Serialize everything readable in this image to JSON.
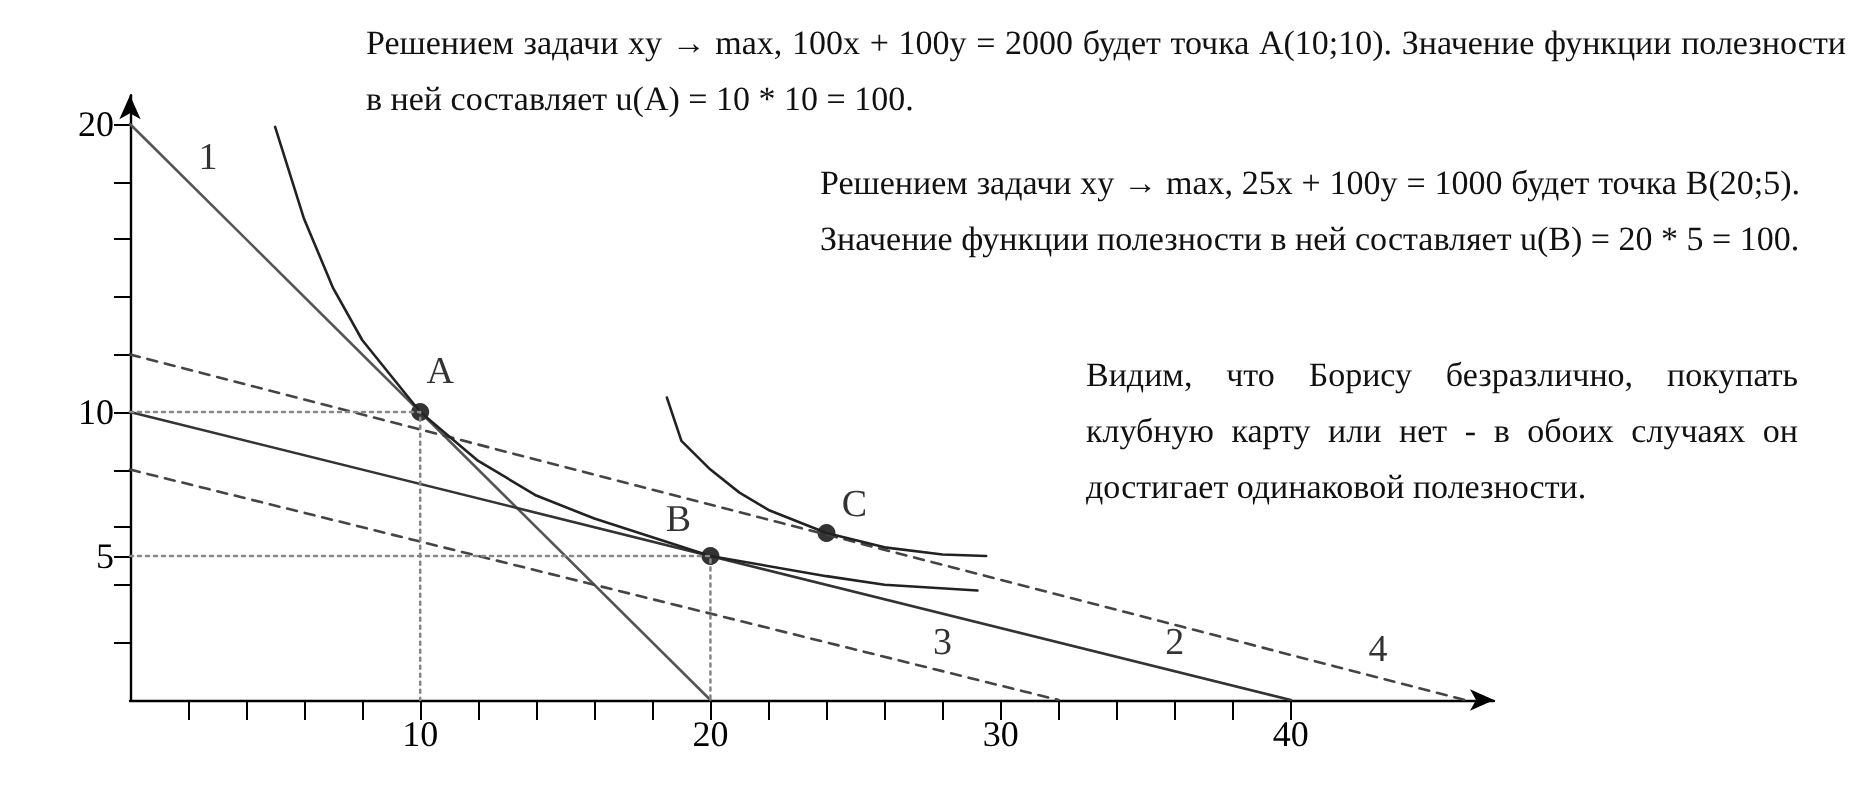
{
  "chart_data": {
    "type": "line",
    "xlim": [
      0,
      47
    ],
    "ylim": [
      0,
      21
    ],
    "xticks": [
      {
        "value": 2,
        "label": null
      },
      {
        "value": 4,
        "label": null
      },
      {
        "value": 6,
        "label": null
      },
      {
        "value": 8,
        "label": null
      },
      10,
      {
        "value": 12,
        "label": null
      },
      {
        "value": 14,
        "label": null
      },
      {
        "value": 16,
        "label": null
      },
      {
        "value": 18,
        "label": null
      },
      20,
      {
        "value": 22,
        "label": null
      },
      {
        "value": 24,
        "label": null
      },
      {
        "value": 26,
        "label": null
      },
      {
        "value": 28,
        "label": null
      },
      30,
      {
        "value": 32,
        "label": null
      },
      {
        "value": 34,
        "label": null
      },
      {
        "value": 36,
        "label": null
      },
      {
        "value": 38,
        "label": null
      },
      40
    ],
    "yticks": [
      {
        "value": 2,
        "label": null
      },
      {
        "value": 4,
        "label": null
      },
      5,
      {
        "value": 6,
        "label": null
      },
      {
        "value": 8,
        "label": null
      },
      10,
      {
        "value": 12,
        "label": null
      },
      {
        "value": 14,
        "label": null
      },
      {
        "value": 16,
        "label": null
      },
      {
        "value": 18,
        "label": null
      },
      20
    ],
    "grid": false,
    "marker": "none",
    "series": [
      {
        "color": "#555555",
        "line_style": "solid",
        "x": [
          0,
          20
        ],
        "values": [
          20,
          0
        ]
      },
      {
        "color": "#333333",
        "line_style": "solid",
        "x": [
          0,
          40
        ],
        "values": [
          10,
          0
        ]
      },
      {
        "color": "#444444",
        "line_style": "dashed",
        "x": [
          0,
          32
        ],
        "values": [
          8,
          0
        ]
      },
      {
        "color": "#444444",
        "line_style": "dashed",
        "x": [
          0,
          46
        ],
        "values": [
          12,
          0
        ]
      },
      {
        "type": "line",
        "color": "#222222",
        "line_style": "solid",
        "x": [
          5,
          6,
          7,
          8,
          10,
          12,
          14,
          16,
          20,
          24,
          26,
          29.2
        ],
        "values": [
          19.9,
          16.7,
          14.3,
          12.5,
          10,
          8.3,
          7.1,
          6.3,
          5,
          4.3,
          4.0,
          3.8
        ]
      },
      {
        "type": "line",
        "color": "#222222",
        "line_style": "solid",
        "x": [
          18.5,
          19,
          20,
          21,
          22,
          24,
          26,
          28,
          29.5
        ],
        "values": [
          10.5,
          9,
          8,
          7.2,
          6.6,
          5.8,
          5.3,
          5.05,
          5.0
        ]
      },
      {
        "type": "line",
        "color": "#888888",
        "line_style": "dotted",
        "x": [
          0,
          10,
          10
        ],
        "values": [
          10,
          10,
          0
        ]
      },
      {
        "type": "line",
        "color": "#888888",
        "line_style": "dotted",
        "x": [
          0,
          20,
          20
        ],
        "values": [
          5,
          5,
          0
        ]
      },
      {
        "type": "scatter",
        "color": "#000000",
        "marker": "circle",
        "x": [
          10,
          20,
          24
        ],
        "values": [
          10,
          5,
          5.8
        ]
      }
    ],
    "annotations": [
      "Решением задачи xy → max, 100x + 100y = 2000 будет точка A(10;10). Значение функции полезности в ней составляет u(A) = 10 * 10 = 100.",
      "Решением задачи xy → max, 25x + 100y = 1000 будет точка B(20;5). Значение функции полезности в ней составляет u(B) = 20 * 5 = 100.",
      "Видим, что Борису безразлично, покупать клубную карту или нет - в обоих случаях он достигает одинаковой полезности.",
      {
        "text": "1",
        "x": 2,
        "y": 18
      },
      {
        "text": "2",
        "x": 36,
        "y": 1
      },
      {
        "text": "3",
        "x": 28,
        "y": 1
      },
      {
        "text": "4",
        "x": 43,
        "y": 0.78
      },
      {
        "text": "A",
        "x": 10,
        "y": 10
      },
      {
        "text": "B",
        "x": 20,
        "y": 5
      },
      {
        "text": "C",
        "x": 24,
        "y": 5.8
      }
    ]
  }
}
